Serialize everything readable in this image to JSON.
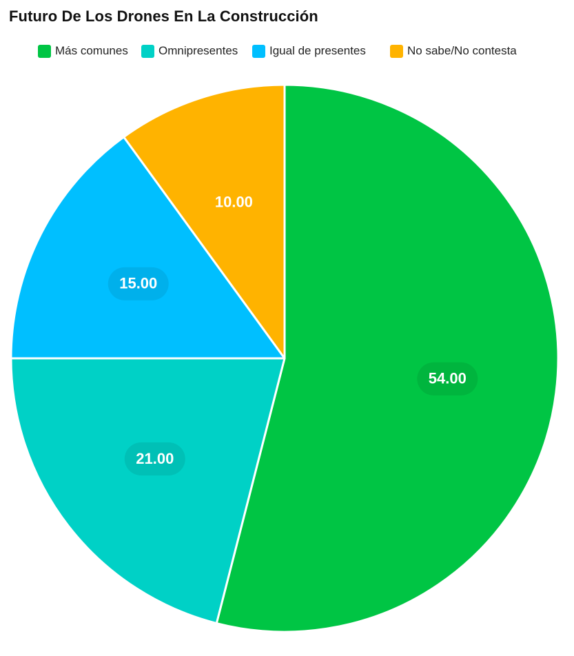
{
  "chart_data": {
    "type": "pie",
    "title": "Futuro De Los Drones En La Construcción",
    "legend_position": "top",
    "slices": [
      {
        "label": "Más comunes",
        "value": 54.0,
        "value_label": "54.00",
        "color": "#00c544"
      },
      {
        "label": "Omnipresentes",
        "value": 21.0,
        "value_label": "21.00",
        "color": "#00d1c6"
      },
      {
        "label": "Igual de presentes",
        "value": 15.0,
        "value_label": "15.00",
        "color": "#00bfff"
      },
      {
        "label": "No sabe/No contesta",
        "value": 10.0,
        "value_label": "10.00",
        "color": "#ffb300"
      }
    ]
  }
}
